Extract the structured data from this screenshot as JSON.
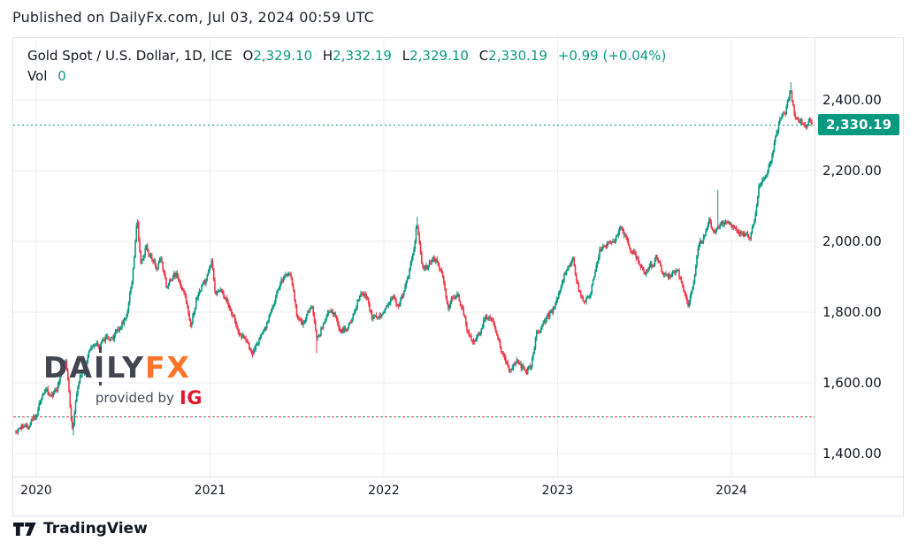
{
  "header": {
    "published_line": "Published on DailyFx.com, Jul 03, 2024 00:59 UTC"
  },
  "legend": {
    "symbol_title": "Gold Spot / U.S. Dollar, 1D, ICE",
    "o_label": "O",
    "o_value": "2,329.10",
    "h_label": "H",
    "h_value": "2,332.19",
    "l_label": "L",
    "l_value": "2,329.10",
    "c_label": "C",
    "c_value": "2,330.19",
    "change": "+0.99 (+0.04%)",
    "vol_label": "Vol",
    "vol_value": "0"
  },
  "price_axis": {
    "labels": [
      {
        "text": "2,400.00",
        "price": 2400
      },
      {
        "text": "2,200.00",
        "price": 2200
      },
      {
        "text": "2,000.00",
        "price": 2000
      },
      {
        "text": "1,800.00",
        "price": 1800
      },
      {
        "text": "1,600.00",
        "price": 1600
      },
      {
        "text": "1,400.00",
        "price": 1400
      }
    ],
    "current_badge": {
      "text": "2,330.19",
      "price": 2330.19
    }
  },
  "time_axis": {
    "labels": [
      {
        "text": "2020",
        "year": 2020
      },
      {
        "text": "2021",
        "year": 2021
      },
      {
        "text": "2022",
        "year": 2022
      },
      {
        "text": "2023",
        "year": 2023
      },
      {
        "text": "2024",
        "year": 2024
      }
    ]
  },
  "watermark": {
    "daily_pre": "DA",
    "daily_i": "I",
    "daily_post": "LY",
    "fx": "FX",
    "provided_by": "provided by",
    "ig": "IG"
  },
  "footer": {
    "brand": "TradingView"
  },
  "colors": {
    "up": "#089981",
    "down": "#f23645",
    "badge_bg": "#089981",
    "badge_text": "#ffffff",
    "text": "#131722",
    "grid": "#eceef2",
    "axis_border": "#e0e3eb",
    "watermark_dark": "#434651",
    "watermark_orange": "#ff7426",
    "ig_red": "#e01a2b"
  },
  "chart_data": {
    "type": "candlestick",
    "title": "Gold Spot / U.S. Dollar, 1D, ICE",
    "symbol": "Gold Spot / U.S. Dollar",
    "timeframe": "1D",
    "exchange": "ICE",
    "current_ohlc": {
      "open": 2329.1,
      "high": 2332.19,
      "low": 2329.1,
      "close": 2330.19,
      "change": 0.99,
      "change_pct": 0.04
    },
    "volume": 0,
    "x_domain_years": [
      2019.87,
      2024.48
    ],
    "y_axis": {
      "gridlines": [
        1400,
        1600,
        1800,
        2000,
        2200,
        2400
      ],
      "visible_range": [
        1340,
        2470
      ]
    },
    "year_gridlines": [
      2020,
      2021,
      2022,
      2023,
      2024
    ],
    "current_price_level": 2330.19,
    "reference_dotted_level": 1504,
    "anchors": [
      [
        2019.87,
        1462
      ],
      [
        2019.92,
        1472
      ],
      [
        2019.96,
        1478
      ],
      [
        2020.0,
        1515
      ],
      [
        2020.03,
        1558
      ],
      [
        2020.06,
        1570
      ],
      [
        2020.09,
        1560
      ],
      [
        2020.12,
        1585
      ],
      [
        2020.15,
        1640
      ],
      [
        2020.17,
        1672
      ],
      [
        2020.19,
        1565
      ],
      [
        2020.21,
        1455
      ],
      [
        2020.23,
        1560
      ],
      [
        2020.25,
        1620
      ],
      [
        2020.28,
        1645
      ],
      [
        2020.31,
        1690
      ],
      [
        2020.34,
        1705
      ],
      [
        2020.37,
        1712
      ],
      [
        2020.4,
        1728
      ],
      [
        2020.44,
        1722
      ],
      [
        2020.48,
        1758
      ],
      [
        2020.52,
        1790
      ],
      [
        2020.55,
        1885
      ],
      [
        2020.58,
        2060
      ],
      [
        2020.6,
        1935
      ],
      [
        2020.63,
        1990
      ],
      [
        2020.66,
        1955
      ],
      [
        2020.69,
        1930
      ],
      [
        2020.72,
        1945
      ],
      [
        2020.75,
        1865
      ],
      [
        2020.78,
        1895
      ],
      [
        2020.81,
        1905
      ],
      [
        2020.84,
        1870
      ],
      [
        2020.87,
        1810
      ],
      [
        2020.89,
        1767
      ],
      [
        2020.92,
        1838
      ],
      [
        2020.95,
        1875
      ],
      [
        2020.98,
        1890
      ],
      [
        2021.01,
        1950
      ],
      [
        2021.03,
        1845
      ],
      [
        2021.06,
        1855
      ],
      [
        2021.09,
        1840
      ],
      [
        2021.12,
        1810
      ],
      [
        2021.15,
        1772
      ],
      [
        2021.18,
        1730
      ],
      [
        2021.21,
        1722
      ],
      [
        2021.24,
        1685
      ],
      [
        2021.27,
        1708
      ],
      [
        2021.3,
        1742
      ],
      [
        2021.33,
        1770
      ],
      [
        2021.36,
        1815
      ],
      [
        2021.39,
        1868
      ],
      [
        2021.42,
        1892
      ],
      [
        2021.45,
        1905
      ],
      [
        2021.47,
        1885
      ],
      [
        2021.5,
        1788
      ],
      [
        2021.53,
        1770
      ],
      [
        2021.56,
        1800
      ],
      [
        2021.59,
        1812
      ],
      [
        2021.61,
        1725
      ],
      [
        2021.63,
        1740
      ],
      [
        2021.66,
        1782
      ],
      [
        2021.69,
        1800
      ],
      [
        2021.72,
        1788
      ],
      [
        2021.75,
        1745
      ],
      [
        2021.78,
        1758
      ],
      [
        2021.81,
        1772
      ],
      [
        2021.84,
        1820
      ],
      [
        2021.87,
        1862
      ],
      [
        2021.9,
        1848
      ],
      [
        2021.93,
        1788
      ],
      [
        2021.96,
        1778
      ],
      [
        2021.99,
        1802
      ],
      [
        2022.02,
        1818
      ],
      [
        2022.05,
        1838
      ],
      [
        2022.08,
        1808
      ],
      [
        2022.11,
        1852
      ],
      [
        2022.14,
        1902
      ],
      [
        2022.17,
        1975
      ],
      [
        2022.19,
        2052
      ],
      [
        2022.22,
        1938
      ],
      [
        2022.25,
        1928
      ],
      [
        2022.28,
        1955
      ],
      [
        2022.31,
        1948
      ],
      [
        2022.34,
        1900
      ],
      [
        2022.37,
        1815
      ],
      [
        2022.4,
        1848
      ],
      [
        2022.43,
        1838
      ],
      [
        2022.46,
        1788
      ],
      [
        2022.49,
        1738
      ],
      [
        2022.52,
        1712
      ],
      [
        2022.55,
        1742
      ],
      [
        2022.58,
        1782
      ],
      [
        2022.61,
        1792
      ],
      [
        2022.64,
        1748
      ],
      [
        2022.67,
        1705
      ],
      [
        2022.7,
        1662
      ],
      [
        2022.73,
        1625
      ],
      [
        2022.76,
        1662
      ],
      [
        2022.79,
        1648
      ],
      [
        2022.82,
        1632
      ],
      [
        2022.85,
        1655
      ],
      [
        2022.88,
        1752
      ],
      [
        2022.91,
        1758
      ],
      [
        2022.94,
        1788
      ],
      [
        2022.97,
        1802
      ],
      [
        2023.0,
        1838
      ],
      [
        2023.03,
        1898
      ],
      [
        2023.06,
        1932
      ],
      [
        2023.09,
        1945
      ],
      [
        2023.12,
        1862
      ],
      [
        2023.15,
        1828
      ],
      [
        2023.18,
        1838
      ],
      [
        2023.21,
        1902
      ],
      [
        2023.24,
        1972
      ],
      [
        2023.27,
        1988
      ],
      [
        2023.3,
        2002
      ],
      [
        2023.33,
        2012
      ],
      [
        2023.36,
        2042
      ],
      [
        2023.39,
        2012
      ],
      [
        2023.42,
        1975
      ],
      [
        2023.45,
        1962
      ],
      [
        2023.48,
        1922
      ],
      [
        2023.51,
        1912
      ],
      [
        2023.54,
        1928
      ],
      [
        2023.57,
        1958
      ],
      [
        2023.6,
        1918
      ],
      [
        2023.63,
        1895
      ],
      [
        2023.66,
        1912
      ],
      [
        2023.69,
        1922
      ],
      [
        2023.72,
        1862
      ],
      [
        2023.75,
        1822
      ],
      [
        2023.78,
        1868
      ],
      [
        2023.81,
        1992
      ],
      [
        2023.84,
        2008
      ],
      [
        2023.87,
        2062
      ],
      [
        2023.89,
        2028
      ],
      [
        2023.92,
        2042
      ],
      [
        2023.95,
        2048
      ],
      [
        2023.98,
        2068
      ],
      [
        2024.01,
        2038
      ],
      [
        2024.04,
        2028
      ],
      [
        2024.07,
        2032
      ],
      [
        2024.1,
        2002
      ],
      [
        2024.13,
        2048
      ],
      [
        2024.16,
        2152
      ],
      [
        2024.19,
        2178
      ],
      [
        2024.22,
        2212
      ],
      [
        2024.25,
        2280
      ],
      [
        2024.28,
        2350
      ],
      [
        2024.31,
        2370
      ],
      [
        2024.33,
        2400
      ],
      [
        2024.34,
        2428
      ],
      [
        2024.37,
        2338
      ],
      [
        2024.4,
        2348
      ],
      [
        2024.43,
        2312
      ],
      [
        2024.45,
        2352
      ],
      [
        2024.47,
        2330.19
      ]
    ],
    "spikes": [
      {
        "t": 2020.213,
        "low": 1451
      },
      {
        "t": 2021.612,
        "low": 1684
      },
      {
        "t": 2022.19,
        "high": 2070
      },
      {
        "t": 2023.925,
        "high": 2146
      },
      {
        "t": 2024.345,
        "high": 2450
      }
    ]
  }
}
